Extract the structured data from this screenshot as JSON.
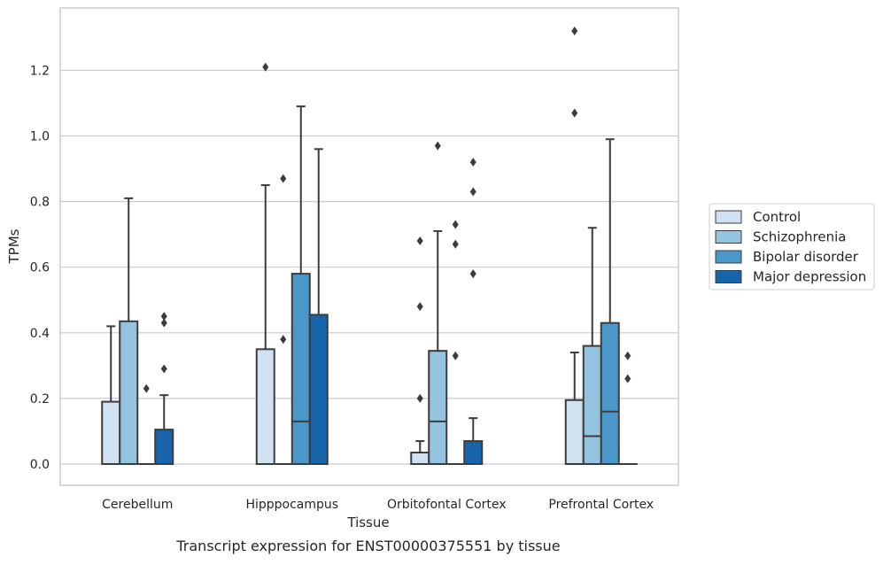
{
  "caption": "Transcript expression for ENST00000375551 by tissue",
  "chart_data": {
    "type": "box",
    "xlabel": "Tissue",
    "ylabel": "TPMs",
    "ylim": [
      -0.065,
      1.39
    ],
    "yticks": [
      0.0,
      0.2,
      0.4,
      0.6,
      0.8,
      1.0,
      1.2
    ],
    "ytick_labels": [
      "0.0",
      "0.2",
      "0.4",
      "0.6",
      "0.8",
      "1.0",
      "1.2"
    ],
    "grid": "horizontal",
    "legend_position": "right",
    "categories": [
      "Cerebellum",
      "Hipppocampus",
      "Orbitofontal Cortex",
      "Prefrontal Cortex"
    ],
    "series": [
      {
        "name": "Control",
        "color": "#d0e1f2",
        "boxes": [
          {
            "q1": 0.0,
            "median": 0.0,
            "q3": 0.19,
            "whisker_low": 0.0,
            "whisker_high": 0.42,
            "outliers": []
          },
          {
            "q1": 0.0,
            "median": 0.0,
            "q3": 0.35,
            "whisker_low": 0.0,
            "whisker_high": 0.85,
            "outliers": [
              1.21
            ]
          },
          {
            "q1": 0.0,
            "median": 0.0,
            "q3": 0.035,
            "whisker_low": 0.0,
            "whisker_high": 0.07,
            "outliers": [
              0.2,
              0.48,
              0.68
            ]
          },
          {
            "q1": 0.0,
            "median": 0.0,
            "q3": 0.195,
            "whisker_low": 0.0,
            "whisker_high": 0.34,
            "outliers": [
              1.07,
              1.32
            ]
          }
        ]
      },
      {
        "name": "Schizophrenia",
        "color": "#94c4df",
        "boxes": [
          {
            "q1": 0.0,
            "median": 0.0,
            "q3": 0.435,
            "whisker_low": 0.0,
            "whisker_high": 0.81,
            "outliers": []
          },
          {
            "q1": 0.0,
            "median": 0.0,
            "q3": 0.0,
            "whisker_low": 0.0,
            "whisker_high": 0.0,
            "outliers": [
              0.38,
              0.87
            ]
          },
          {
            "q1": 0.0,
            "median": 0.13,
            "q3": 0.345,
            "whisker_low": 0.0,
            "whisker_high": 0.71,
            "outliers": [
              0.97
            ]
          },
          {
            "q1": 0.0,
            "median": 0.085,
            "q3": 0.36,
            "whisker_low": 0.0,
            "whisker_high": 0.72,
            "outliers": []
          }
        ]
      },
      {
        "name": "Bipolar disorder",
        "color": "#4a98c9",
        "boxes": [
          {
            "q1": 0.0,
            "median": 0.0,
            "q3": 0.0,
            "whisker_low": 0.0,
            "whisker_high": 0.0,
            "outliers": [
              0.23
            ]
          },
          {
            "q1": 0.0,
            "median": 0.13,
            "q3": 0.58,
            "whisker_low": 0.0,
            "whisker_high": 1.09,
            "outliers": []
          },
          {
            "q1": 0.0,
            "median": 0.0,
            "q3": 0.0,
            "whisker_low": 0.0,
            "whisker_high": 0.0,
            "outliers": [
              0.33,
              0.67,
              0.73
            ]
          },
          {
            "q1": 0.0,
            "median": 0.16,
            "q3": 0.43,
            "whisker_low": 0.0,
            "whisker_high": 0.99,
            "outliers": []
          }
        ]
      },
      {
        "name": "Major depression",
        "color": "#1764ab",
        "boxes": [
          {
            "q1": 0.0,
            "median": 0.0,
            "q3": 0.105,
            "whisker_low": 0.0,
            "whisker_high": 0.21,
            "outliers": [
              0.29,
              0.43,
              0.45
            ]
          },
          {
            "q1": 0.0,
            "median": 0.0,
            "q3": 0.455,
            "whisker_low": 0.0,
            "whisker_high": 0.96,
            "outliers": []
          },
          {
            "q1": 0.0,
            "median": 0.0,
            "q3": 0.07,
            "whisker_low": 0.0,
            "whisker_high": 0.14,
            "outliers": [
              0.58,
              0.83,
              0.92
            ]
          },
          {
            "q1": 0.0,
            "median": 0.0,
            "q3": 0.0,
            "whisker_low": 0.0,
            "whisker_high": 0.0,
            "outliers": [
              0.26,
              0.33
            ]
          }
        ]
      }
    ]
  }
}
